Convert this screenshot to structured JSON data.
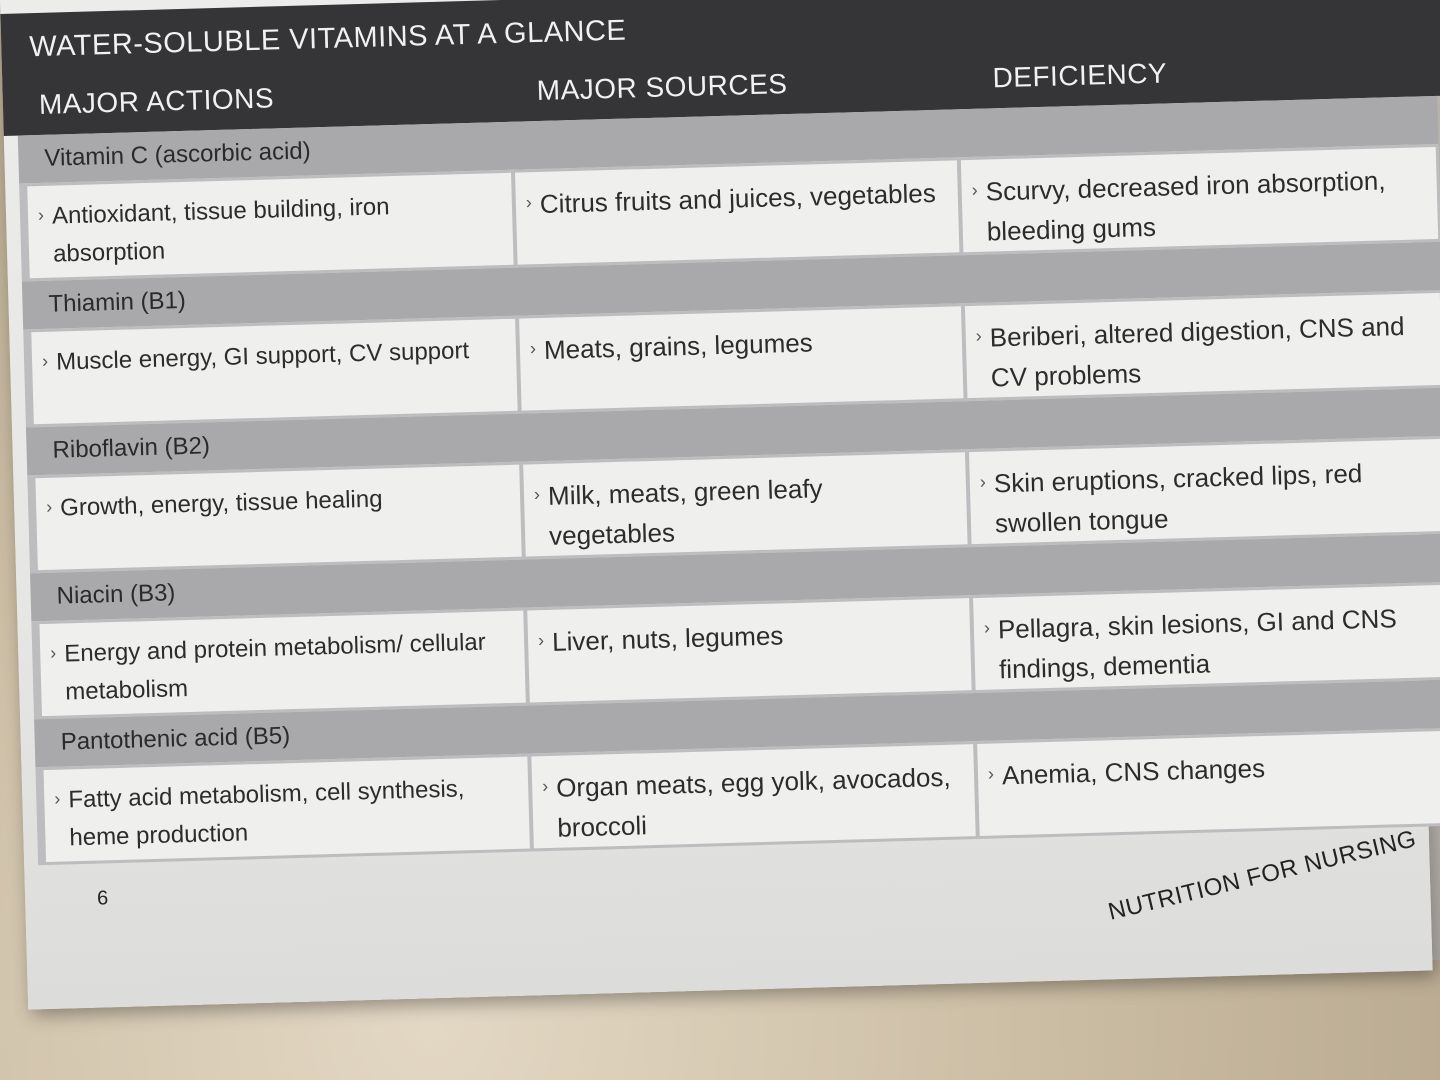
{
  "title": "WATER-SOLUBLE VITAMINS AT A GLANCE",
  "columns": [
    "MAJOR ACTIONS",
    "MAJOR SOURCES",
    "DEFICIENCY"
  ],
  "bullet": "›",
  "vitamins": [
    {
      "name": "Vitamin C (ascorbic acid)",
      "actions": "Antioxidant, tissue building, iron absorption",
      "sources": "Citrus fruits and juices, vegetables",
      "deficiency": "Scurvy, decreased iron absorption, bleeding gums"
    },
    {
      "name": "Thiamin (B1)",
      "actions": "Muscle energy, GI support, CV support",
      "sources": "Meats, grains, legumes",
      "deficiency": "Beriberi, altered digestion, CNS and CV problems"
    },
    {
      "name": "Riboflavin (B2)",
      "actions": "Growth, energy, tissue healing",
      "sources": "Milk, meats, green leafy vegetables",
      "deficiency": "Skin eruptions, cracked lips, red swollen tongue"
    },
    {
      "name": "Niacin (B3)",
      "actions": "Energy and protein metabolism/ cellular metabolism",
      "sources": "Liver, nuts, legumes",
      "deficiency": "Pellagra, skin lesions, GI and CNS findings, dementia"
    },
    {
      "name": "Pantothenic acid (B5)",
      "actions": "Fatty acid metabolism, cell synthesis, heme production",
      "sources": "Organ meats, egg yolk, avocados, broccoli",
      "deficiency": "Anemia, CNS changes"
    }
  ],
  "page_number": "6",
  "footer": "NUTRITION FOR NURSING"
}
